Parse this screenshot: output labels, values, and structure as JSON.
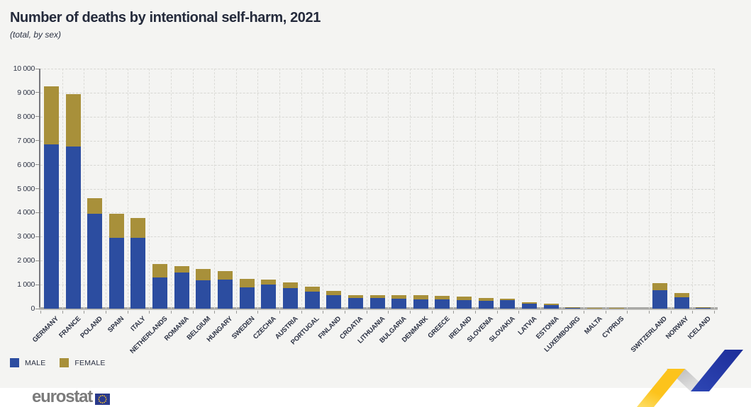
{
  "header": {
    "title": "Number of deaths by intentional self-harm, 2021",
    "subtitle": "(total, by sex)"
  },
  "legend": {
    "male_label": "MALE",
    "female_label": "FEMALE"
  },
  "footer": {
    "brand": "eurostat"
  },
  "colors": {
    "male": "#2c4da0",
    "female": "#a8903a",
    "card_background": "#f4f4f2",
    "title_text": "#252b3c",
    "axis_text": "#2f3546",
    "grid_line": "#d7d7d3",
    "axis_line": "#77777c",
    "baseline": "#a9a9a6",
    "brand_gray": "#7b7b7b",
    "flag_blue": "#2a3a8c",
    "star_gold": "#f8c42a",
    "ribbon_yellow": "#fcc31c",
    "ribbon_gray": "#c9c9c9",
    "ribbon_blue": "#2336a3"
  },
  "chart_data": {
    "type": "bar",
    "stacked": true,
    "title": "Number of deaths by intentional self-harm, 2021",
    "subtitle": "(total, by sex)",
    "xlabel": "",
    "ylabel": "",
    "ylim": [
      0,
      10000
    ],
    "ytick_step": 1000,
    "ytick_labels": [
      "0",
      "1 000",
      "2 000",
      "3 000",
      "4 000",
      "5 000",
      "6 000",
      "7 000",
      "8 000",
      "9 000",
      "10 000"
    ],
    "grid": true,
    "legend_position": "bottom-left",
    "gap_after_index": 26,
    "categories": [
      "GERMANY",
      "FRANCE",
      "POLAND",
      "SPAIN",
      "ITALY",
      "NETHERLANDS",
      "ROMANIA",
      "BELGIUM",
      "HUNGARY",
      "SWEDEN",
      "CZECHIA",
      "AUSTRIA",
      "PORTUGAL",
      "FINLAND",
      "CROATIA",
      "LITHUANIA",
      "BULGARIA",
      "DENMARK",
      "GREECE",
      "IRELAND",
      "SLOVENIA",
      "SLOVAKIA",
      "LATVIA",
      "ESTONIA",
      "LUXEMBOURG",
      "MALTA",
      "CYPRUS",
      "SWITZERLAND",
      "NORWAY",
      "ICELAND"
    ],
    "series": [
      {
        "name": "MALE",
        "color": "#2c4da0",
        "values": [
          6850,
          6750,
          3950,
          2940,
          2950,
          1290,
          1520,
          1185,
          1200,
          900,
          990,
          860,
          715,
          550,
          430,
          440,
          420,
          390,
          380,
          350,
          330,
          350,
          205,
          150,
          50,
          30,
          35,
          760,
          480,
          40
        ]
      },
      {
        "name": "FEMALE",
        "color": "#a8903a",
        "values": [
          2400,
          2180,
          660,
          1010,
          840,
          570,
          260,
          465,
          360,
          350,
          230,
          220,
          195,
          195,
          140,
          110,
          130,
          170,
          140,
          140,
          120,
          55,
          50,
          45,
          20,
          10,
          10,
          300,
          180,
          10
        ]
      }
    ]
  }
}
